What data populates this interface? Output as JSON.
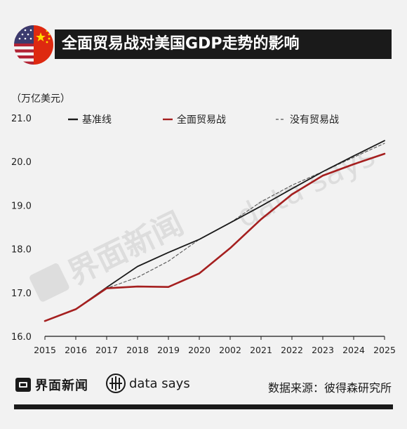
{
  "header": {
    "title": "全面贸易战对美国GDP走势的影响",
    "flag_colors": {
      "us_red": "#b22234",
      "us_blue": "#3c3b6e",
      "cn_red": "#de2910",
      "cn_yellow": "#ffde00"
    }
  },
  "footer": {
    "brand_jm": "界面新闻",
    "brand_ds": "data says",
    "source": "数据来源：彼得森研究所",
    "watermark_jm": "界面新闻",
    "watermark_ds": "data says"
  },
  "chart_data": {
    "type": "line",
    "ylabel": "（万亿美元）",
    "categories": [
      "2015",
      "2016",
      "2017",
      "2018",
      "2019",
      "2020",
      "2002",
      "2021",
      "2022",
      "2023",
      "2024",
      "2025"
    ],
    "ylim": [
      16.0,
      21.0
    ],
    "yticks": [
      "16.0",
      "17.0",
      "18.0",
      "19.0",
      "20.0",
      "21.0"
    ],
    "grid": false,
    "legend_position": "top",
    "series": [
      {
        "name": "基准线",
        "color": "#1a1a1a",
        "dash": "solid",
        "values": [
          16.35,
          16.62,
          17.12,
          17.6,
          17.92,
          18.22,
          18.6,
          18.98,
          19.38,
          19.77,
          20.13,
          20.48
        ]
      },
      {
        "name": "全面贸易战",
        "color": "#a51f1f",
        "dash": "solid",
        "values": [
          16.35,
          16.62,
          17.1,
          17.14,
          17.13,
          17.44,
          18.02,
          18.68,
          19.25,
          19.68,
          19.94,
          20.18
        ]
      },
      {
        "name": "没有贸易战",
        "color": "#555555",
        "dash": "dashed",
        "values": [
          16.35,
          16.62,
          17.1,
          17.35,
          17.72,
          18.22,
          18.6,
          19.08,
          19.46,
          19.77,
          20.1,
          20.42
        ]
      }
    ]
  }
}
